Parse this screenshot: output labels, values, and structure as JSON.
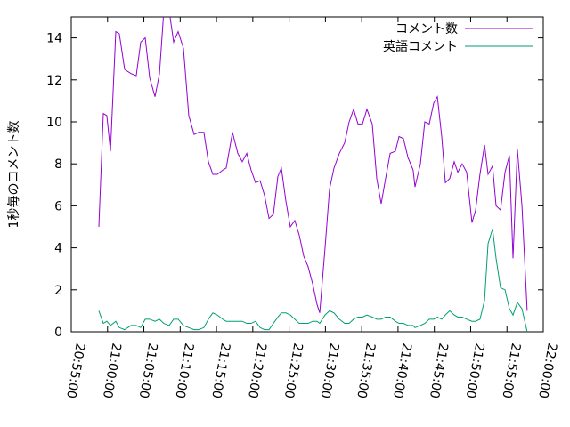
{
  "chart_data": {
    "type": "line",
    "ylabel": "1秒毎のコメント数",
    "x": [
      "20:58:48",
      "20:59:25",
      "20:59:54",
      "21:00:24",
      "21:01:08",
      "21:01:37",
      "21:02:21",
      "21:03:13",
      "21:03:57",
      "21:04:34",
      "21:05:11",
      "21:05:48",
      "21:06:32",
      "21:07:09",
      "21:07:45",
      "21:08:29",
      "21:09:06",
      "21:09:43",
      "21:10:27",
      "21:11:11",
      "21:11:55",
      "21:12:32",
      "21:13:16",
      "21:13:53",
      "21:14:30",
      "21:15:07",
      "21:15:51",
      "21:16:20",
      "21:17:12",
      "21:17:56",
      "21:18:33",
      "21:19:10",
      "21:19:46",
      "21:20:23",
      "21:21:00",
      "21:21:37",
      "21:22:14",
      "21:22:50",
      "21:23:27",
      "21:23:56",
      "21:24:34",
      "21:25:10",
      "21:25:47",
      "21:26:24",
      "21:27:01",
      "21:27:37",
      "21:28:14",
      "21:28:51",
      "21:29:13",
      "21:29:57",
      "21:30:34",
      "21:31:11",
      "21:31:55",
      "21:32:39",
      "21:33:16",
      "21:33:53",
      "21:34:29",
      "21:35:06",
      "21:35:43",
      "21:36:27",
      "21:37:04",
      "21:37:41",
      "21:38:17",
      "21:38:55",
      "21:39:38",
      "21:40:08",
      "21:40:45",
      "21:41:22",
      "21:42:05",
      "21:42:20",
      "21:43:05",
      "21:43:41",
      "21:44:18",
      "21:44:55",
      "21:45:25",
      "21:46:01",
      "21:46:31",
      "21:47:07",
      "21:47:44",
      "21:48:14",
      "21:48:50",
      "21:49:27",
      "21:50:11",
      "21:50:41",
      "21:51:17",
      "21:51:55",
      "21:52:24",
      "21:53:01",
      "21:53:30",
      "21:54:07",
      "21:54:44",
      "21:55:20",
      "21:55:50",
      "21:56:26",
      "21:57:04",
      "21:57:47"
    ],
    "series": [
      {
        "name": "コメント数",
        "color": "#9400d3",
        "values": [
          5.0,
          10.4,
          10.3,
          8.6,
          14.3,
          14.2,
          12.5,
          12.3,
          12.2,
          13.8,
          14.0,
          12.1,
          11.2,
          12.3,
          15.3,
          15.3,
          13.8,
          14.3,
          13.5,
          10.3,
          9.4,
          9.5,
          9.5,
          8.1,
          7.5,
          7.5,
          7.7,
          7.8,
          9.5,
          8.5,
          8.1,
          8.5,
          7.7,
          7.1,
          7.2,
          6.5,
          5.4,
          5.6,
          7.4,
          7.8,
          6.2,
          5.0,
          5.3,
          4.6,
          3.6,
          3.1,
          2.3,
          1.3,
          0.9,
          4.0,
          6.8,
          7.8,
          8.5,
          9.0,
          10.0,
          10.6,
          9.9,
          9.9,
          10.6,
          9.9,
          7.3,
          6.1,
          7.3,
          8.5,
          8.6,
          9.3,
          9.2,
          8.3,
          7.7,
          6.9,
          8.0,
          10.0,
          9.9,
          10.9,
          11.2,
          9.3,
          7.1,
          7.3,
          8.1,
          7.6,
          8.0,
          7.6,
          5.2,
          5.8,
          7.5,
          8.9,
          7.5,
          7.9,
          6.0,
          5.8,
          7.6,
          8.4,
          3.5,
          8.7,
          6.0,
          1.0
        ]
      },
      {
        "name": "英語コメント",
        "color": "#009e73",
        "values": [
          1.0,
          0.4,
          0.5,
          0.3,
          0.5,
          0.2,
          0.1,
          0.3,
          0.3,
          0.2,
          0.6,
          0.6,
          0.5,
          0.6,
          0.4,
          0.3,
          0.6,
          0.6,
          0.3,
          0.2,
          0.1,
          0.1,
          0.2,
          0.6,
          0.9,
          0.8,
          0.6,
          0.5,
          0.5,
          0.5,
          0.5,
          0.4,
          0.4,
          0.5,
          0.2,
          0.1,
          0.1,
          0.4,
          0.7,
          0.9,
          0.9,
          0.8,
          0.6,
          0.4,
          0.4,
          0.4,
          0.5,
          0.5,
          0.4,
          0.8,
          1.0,
          0.9,
          0.6,
          0.4,
          0.4,
          0.6,
          0.7,
          0.7,
          0.8,
          0.7,
          0.6,
          0.6,
          0.7,
          0.7,
          0.5,
          0.4,
          0.4,
          0.3,
          0.3,
          0.2,
          0.3,
          0.4,
          0.6,
          0.6,
          0.7,
          0.6,
          0.8,
          1.0,
          0.8,
          0.7,
          0.7,
          0.6,
          0.5,
          0.5,
          0.6,
          1.5,
          4.2,
          4.9,
          3.5,
          2.1,
          2.0,
          1.1,
          0.8,
          1.4,
          1.1,
          0.0
        ]
      }
    ],
    "xlim": [
      "20:55:00",
      "22:00:00"
    ],
    "xticks": [
      "20:55:00",
      "21:00:00",
      "21:05:00",
      "21:10:00",
      "21:15:00",
      "21:20:00",
      "21:25:00",
      "21:30:00",
      "21:35:00",
      "21:40:00",
      "21:45:00",
      "21:50:00",
      "21:55:00",
      "22:00:00"
    ],
    "ylim": [
      0,
      15
    ],
    "yticks": [
      0,
      2,
      4,
      6,
      8,
      10,
      12,
      14
    ],
    "legend": "top-right"
  }
}
